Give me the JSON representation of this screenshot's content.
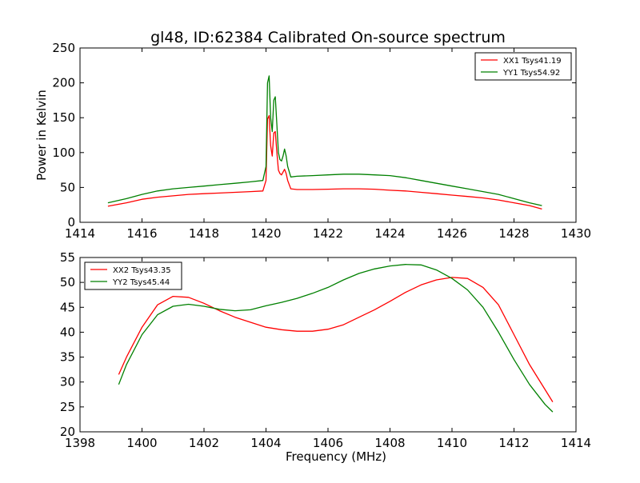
{
  "figure": {
    "title": "gl48, ID:62384 Calibrated On-source spectrum"
  },
  "chart_data": [
    {
      "type": "line",
      "title": "gl48, ID:62384 Calibrated On-source spectrum",
      "xlabel": "",
      "ylabel": "Power in Kelvin",
      "xlim": [
        1414,
        1430
      ],
      "ylim": [
        0,
        250
      ],
      "xticks": [
        1414,
        1416,
        1418,
        1420,
        1422,
        1424,
        1426,
        1428,
        1430
      ],
      "yticks": [
        0,
        50,
        100,
        150,
        200,
        250
      ],
      "grid": false,
      "legend_position": "top-right",
      "series": [
        {
          "name": "XX1 Tsys41.19",
          "color": "#ff0000",
          "x": [
            1414.9,
            1415.5,
            1416.0,
            1416.5,
            1417.0,
            1417.5,
            1418.0,
            1418.5,
            1419.0,
            1419.5,
            1419.9,
            1420.0,
            1420.05,
            1420.1,
            1420.15,
            1420.2,
            1420.25,
            1420.3,
            1420.35,
            1420.4,
            1420.45,
            1420.5,
            1420.55,
            1420.6,
            1420.65,
            1420.7,
            1420.8,
            1421.0,
            1421.5,
            1422.0,
            1422.5,
            1423.0,
            1423.5,
            1424.0,
            1424.5,
            1425.0,
            1425.5,
            1426.0,
            1426.5,
            1427.0,
            1427.5,
            1428.0,
            1428.5,
            1428.9
          ],
          "y": [
            23,
            28,
            33,
            36,
            38,
            40,
            41,
            42,
            43,
            44,
            45,
            60,
            148,
            153,
            110,
            95,
            128,
            130,
            100,
            75,
            70,
            68,
            72,
            76,
            70,
            60,
            48,
            47,
            47,
            47.5,
            48,
            48,
            47.5,
            46,
            45,
            43,
            41,
            39,
            37,
            35,
            32,
            28,
            24,
            19
          ]
        },
        {
          "name": "YY1 Tsys54.92",
          "color": "#008000",
          "x": [
            1414.9,
            1415.5,
            1416.0,
            1416.5,
            1417.0,
            1417.5,
            1418.0,
            1418.5,
            1419.0,
            1419.5,
            1419.9,
            1420.0,
            1420.05,
            1420.1,
            1420.15,
            1420.2,
            1420.25,
            1420.3,
            1420.35,
            1420.4,
            1420.45,
            1420.5,
            1420.55,
            1420.6,
            1420.65,
            1420.7,
            1420.8,
            1421.0,
            1421.5,
            1422.0,
            1422.5,
            1423.0,
            1423.5,
            1424.0,
            1424.5,
            1425.0,
            1425.5,
            1426.0,
            1426.5,
            1427.0,
            1427.5,
            1428.0,
            1428.5,
            1428.9
          ],
          "y": [
            28,
            34,
            40,
            45,
            48,
            50,
            52,
            54,
            56,
            58,
            60,
            80,
            200,
            210,
            150,
            130,
            175,
            180,
            140,
            100,
            90,
            88,
            95,
            105,
            95,
            80,
            65,
            66,
            67,
            68,
            69,
            69,
            68,
            67,
            64,
            60,
            56,
            52,
            48,
            44,
            40,
            34,
            28,
            24
          ]
        }
      ]
    },
    {
      "type": "line",
      "title": "",
      "xlabel": "Frequency (MHz)",
      "ylabel": "",
      "xlim": [
        1398,
        1414
      ],
      "ylim": [
        20,
        55
      ],
      "xticks": [
        1398,
        1400,
        1402,
        1404,
        1406,
        1408,
        1410,
        1412,
        1414
      ],
      "yticks": [
        20,
        25,
        30,
        35,
        40,
        45,
        50,
        55
      ],
      "grid": false,
      "legend_position": "top-left",
      "series": [
        {
          "name": "XX2 Tsys43.35",
          "color": "#ff0000",
          "x": [
            1399.25,
            1399.5,
            1400.0,
            1400.5,
            1401.0,
            1401.5,
            1402.0,
            1402.5,
            1403.0,
            1403.5,
            1404.0,
            1404.5,
            1405.0,
            1405.5,
            1406.0,
            1406.5,
            1407.0,
            1407.5,
            1408.0,
            1408.5,
            1409.0,
            1409.5,
            1410.0,
            1410.5,
            1411.0,
            1411.5,
            1412.0,
            1412.5,
            1413.0,
            1413.25
          ],
          "y": [
            31.5,
            35,
            41,
            45.5,
            47.2,
            47,
            45.8,
            44.3,
            43,
            42,
            41,
            40.5,
            40.2,
            40.2,
            40.6,
            41.5,
            43,
            44.5,
            46.2,
            48,
            49.5,
            50.5,
            51,
            50.8,
            49,
            45.5,
            39.5,
            33.5,
            28.5,
            26
          ]
        },
        {
          "name": "YY2 Tsys45.44",
          "color": "#008000",
          "x": [
            1399.25,
            1399.5,
            1400.0,
            1400.5,
            1401.0,
            1401.5,
            1402.0,
            1402.5,
            1403.0,
            1403.5,
            1404.0,
            1404.5,
            1405.0,
            1405.5,
            1406.0,
            1406.5,
            1407.0,
            1407.5,
            1408.0,
            1408.5,
            1409.0,
            1409.5,
            1410.0,
            1410.5,
            1411.0,
            1411.5,
            1412.0,
            1412.5,
            1413.0,
            1413.25
          ],
          "y": [
            29.5,
            33.5,
            39.5,
            43.5,
            45.2,
            45.6,
            45.2,
            44.6,
            44.3,
            44.5,
            45.3,
            46,
            46.8,
            47.8,
            49,
            50.5,
            51.8,
            52.7,
            53.3,
            53.6,
            53.5,
            52.5,
            50.8,
            48.5,
            45,
            40,
            34.5,
            29.5,
            25.5,
            24
          ]
        }
      ]
    }
  ]
}
